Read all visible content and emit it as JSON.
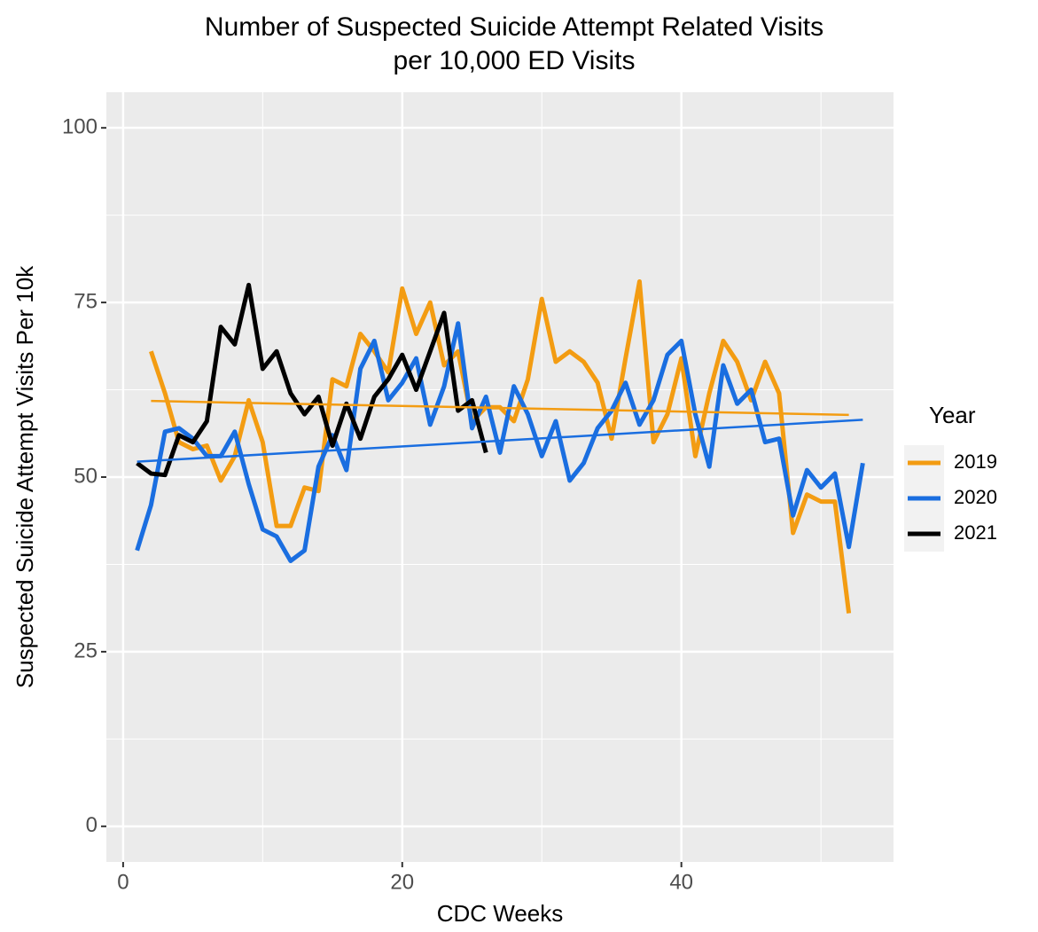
{
  "chart_data": {
    "type": "line",
    "title": [
      "Number of Suspected Suicide Attempt Related Visits",
      "per 10,000 ED Visits"
    ],
    "xlabel": "CDC Weeks",
    "ylabel": "Suspected Suicide Attempt Visits Per 10k",
    "legend_title": "Year",
    "legend_position": "right",
    "grid": true,
    "xlim": [
      -1.2,
      55.2
    ],
    "xticks": [
      0,
      20,
      40
    ],
    "minor_xticks": [
      10,
      30,
      50
    ],
    "ylim": [
      -5.1,
      105.1
    ],
    "yticks": [
      0,
      25,
      50,
      75,
      100
    ],
    "minor_yticks": [
      12.5,
      37.5,
      62.5,
      87.5
    ],
    "series": [
      {
        "name": "2019",
        "color": "#f39c12",
        "x": [
          2,
          3,
          4,
          5,
          6,
          7,
          8,
          9,
          10,
          11,
          12,
          13,
          14,
          15,
          16,
          17,
          18,
          19,
          20,
          21,
          22,
          23,
          24,
          25,
          26,
          27,
          28,
          29,
          30,
          31,
          32,
          33,
          34,
          35,
          36,
          37,
          38,
          39,
          40,
          41,
          42,
          43,
          44,
          45,
          46,
          47,
          48,
          49,
          50,
          51,
          52
        ],
        "values": [
          68,
          62,
          55,
          54,
          54.5,
          49.5,
          53,
          61,
          55,
          43,
          43,
          48.5,
          48,
          64,
          63,
          70.5,
          68,
          65,
          77,
          70.5,
          75,
          66,
          68,
          58,
          60,
          60,
          58,
          64,
          75.5,
          66.5,
          68,
          66.5,
          63.5,
          55.5,
          67,
          78,
          55,
          59,
          67,
          53,
          62,
          69.5,
          66.5,
          61,
          66.5,
          62,
          42,
          47.5,
          46.5,
          46.5,
          30.5
        ],
        "trend": {
          "x": [
            2,
            52
          ],
          "values": [
            60.9,
            58.9
          ]
        }
      },
      {
        "name": "2020",
        "color": "#1a6ee0",
        "x": [
          1,
          2,
          3,
          4,
          5,
          6,
          7,
          8,
          9,
          10,
          11,
          12,
          13,
          14,
          15,
          16,
          17,
          18,
          19,
          20,
          21,
          22,
          23,
          24,
          25,
          26,
          27,
          28,
          29,
          30,
          31,
          32,
          33,
          34,
          35,
          36,
          37,
          38,
          39,
          40,
          41,
          42,
          43,
          44,
          45,
          46,
          47,
          48,
          49,
          50,
          51,
          52,
          53
        ],
        "values": [
          39.5,
          46,
          56.5,
          57,
          55.5,
          53,
          53,
          56.5,
          49,
          42.5,
          41.5,
          38,
          39.5,
          51.5,
          56,
          51,
          65.5,
          69.5,
          61,
          63.5,
          67,
          57.5,
          63,
          72,
          57,
          61.5,
          53.5,
          63,
          59,
          53,
          58,
          49.5,
          52,
          57,
          59.5,
          63.5,
          57.5,
          61,
          67.5,
          69.5,
          59,
          51.5,
          66,
          60.5,
          62.5,
          55,
          55.5,
          44.5,
          51,
          48.5,
          50.5,
          40,
          52
        ],
        "trend": {
          "x": [
            1,
            53
          ],
          "values": [
            52.2,
            58.2
          ]
        }
      },
      {
        "name": "2021",
        "color": "#000000",
        "x": [
          1,
          2,
          3,
          4,
          5,
          6,
          7,
          8,
          9,
          10,
          11,
          12,
          13,
          14,
          15,
          16,
          17,
          18,
          19,
          20,
          21,
          22,
          23,
          24,
          25,
          26
        ],
        "values": [
          52,
          50.5,
          50.3,
          56,
          55,
          58,
          71.5,
          69,
          77.5,
          65.5,
          68,
          62,
          59,
          61.5,
          54.5,
          60.5,
          55.5,
          61.5,
          64,
          67.5,
          62.5,
          68,
          73.5,
          59.5,
          61,
          53.5
        ]
      }
    ]
  }
}
